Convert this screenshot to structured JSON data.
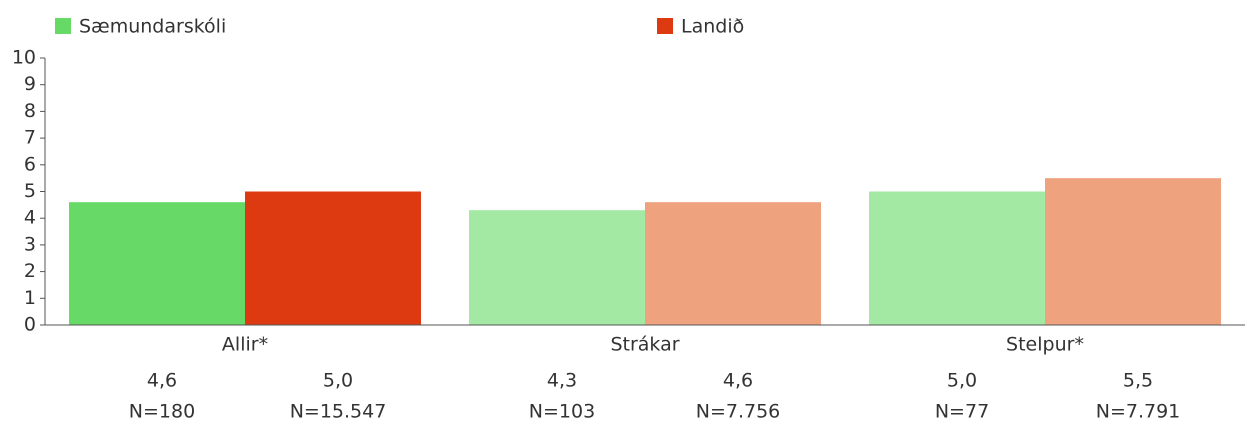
{
  "chart_data": {
    "type": "bar",
    "categories": [
      "Allir*",
      "Strákar",
      "Stelpur*"
    ],
    "series": [
      {
        "name": "Sæmundarskóli",
        "color": "#66d966",
        "bar_colors": [
          "#66d966",
          "#a3e8a3",
          "#a3e8a3"
        ],
        "values": [
          4.6,
          4.3,
          5.0
        ],
        "value_labels": [
          "4,6",
          "4,3",
          "5,0"
        ],
        "n_labels": [
          "N=180",
          "N=103",
          "N=77"
        ]
      },
      {
        "name": "Landið",
        "color": "#dd3a12",
        "bar_colors": [
          "#dd3a12",
          "#efa27e",
          "#efa27e"
        ],
        "values": [
          5.0,
          4.6,
          5.5
        ],
        "value_labels": [
          "5,0",
          "4,6",
          "5,5"
        ],
        "n_labels": [
          "N=15.547",
          "N=7.756",
          "N=7.791"
        ]
      }
    ],
    "ylim": [
      0,
      10
    ],
    "yticks": [
      0,
      1,
      2,
      3,
      4,
      5,
      6,
      7,
      8,
      9,
      10
    ],
    "legend": "top"
  }
}
